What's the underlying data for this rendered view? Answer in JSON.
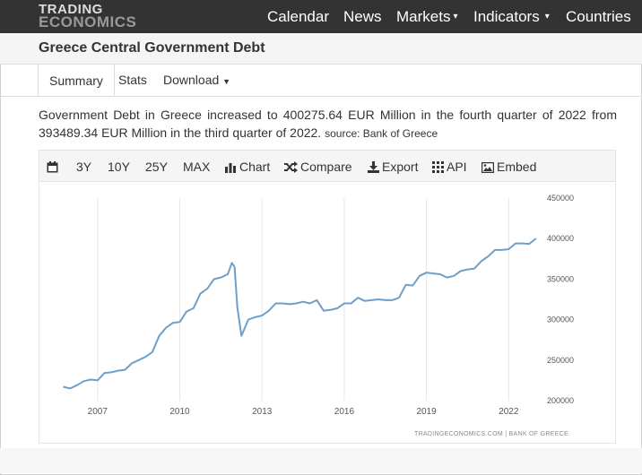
{
  "brand": {
    "line1": "TRADING",
    "line2": "ECONOMICS"
  },
  "nav": {
    "calendar": "Calendar",
    "news": "News",
    "markets": "Markets",
    "indicators": "Indicators",
    "countries": "Countries"
  },
  "page": {
    "title": "Greece Central Government Debt"
  },
  "tabs": {
    "summary": "Summary",
    "stats": "Stats",
    "download": "Download"
  },
  "description": {
    "text": "Government Debt in Greece increased to 400275.64 EUR Million in the fourth quarter of 2022 from 393489.34 EUR Million in the third quarter of 2022.",
    "source": "source: Bank of Greece"
  },
  "toolbar": {
    "r3y": "3Y",
    "r10y": "10Y",
    "r25y": "25Y",
    "max": "MAX",
    "chart": "Chart",
    "compare": "Compare",
    "export": "Export",
    "api": "API",
    "embed": "Embed"
  },
  "icons": {
    "calendar": "calendar-icon",
    "chart": "bar-chart-icon",
    "compare": "shuffle-icon",
    "export": "download-icon",
    "api": "grid-icon",
    "embed": "image-icon",
    "caret": "caret-down-icon"
  },
  "colors": {
    "line": "#6f9fc9",
    "topbar": "#333333",
    "grid": "#e6e6e6"
  },
  "chart_data": {
    "type": "line",
    "credit": "TRADINGECONOMICS.COM  |  BANK OF GREECE",
    "x_ticks": [
      "2007",
      "2010",
      "2013",
      "2016",
      "2019",
      "2022"
    ],
    "x_tick_values": [
      2007,
      2010,
      2013,
      2016,
      2019,
      2022
    ],
    "y_ticks": [
      "200000",
      "250000",
      "300000",
      "350000",
      "400000",
      "450000"
    ],
    "y_tick_values": [
      200000,
      250000,
      300000,
      350000,
      400000,
      450000
    ],
    "xlim": [
      2005.6,
      2023.2
    ],
    "ylim": [
      200000,
      450000
    ],
    "grid": "vertical",
    "series": [
      {
        "x": [
          2005.75,
          2006.0,
          2006.25,
          2006.5,
          2006.75,
          2007.0,
          2007.25,
          2007.5,
          2007.75,
          2008.0,
          2008.25,
          2008.5,
          2008.75,
          2009.0,
          2009.25,
          2009.5,
          2009.75,
          2010.0,
          2010.25,
          2010.5,
          2010.75,
          2011.0,
          2011.25,
          2011.5,
          2011.75,
          2011.9,
          2012.0,
          2012.1,
          2012.25,
          2012.5,
          2012.75,
          2013.0,
          2013.25,
          2013.5,
          2013.75,
          2014.0,
          2014.25,
          2014.5,
          2014.75,
          2015.0,
          2015.25,
          2015.5,
          2015.75,
          2016.0,
          2016.25,
          2016.5,
          2016.75,
          2017.0,
          2017.25,
          2017.5,
          2017.75,
          2018.0,
          2018.25,
          2018.5,
          2018.75,
          2019.0,
          2019.25,
          2019.5,
          2019.75,
          2020.0,
          2020.25,
          2020.5,
          2020.75,
          2021.0,
          2021.25,
          2021.5,
          2021.75,
          2022.0,
          2022.25,
          2022.5,
          2022.75,
          2023.0
        ],
        "y": [
          217000,
          215000,
          219000,
          224000,
          226000,
          225000,
          234000,
          235000,
          237000,
          238000,
          246000,
          250000,
          254000,
          260000,
          280000,
          290000,
          296000,
          297000,
          310000,
          314000,
          332000,
          338000,
          350000,
          352000,
          356000,
          370000,
          365000,
          315000,
          280000,
          300000,
          303000,
          305000,
          311000,
          320000,
          320000,
          319000,
          320000,
          322000,
          320000,
          324000,
          311000,
          312000,
          314000,
          320000,
          320000,
          327000,
          323000,
          324000,
          325000,
          324000,
          324000,
          327000,
          343000,
          342000,
          354000,
          358000,
          357000,
          356000,
          352000,
          354000,
          360000,
          362000,
          363000,
          372000,
          378000,
          386000,
          386000,
          387000,
          394000,
          394000,
          393489,
          400276
        ]
      }
    ]
  }
}
